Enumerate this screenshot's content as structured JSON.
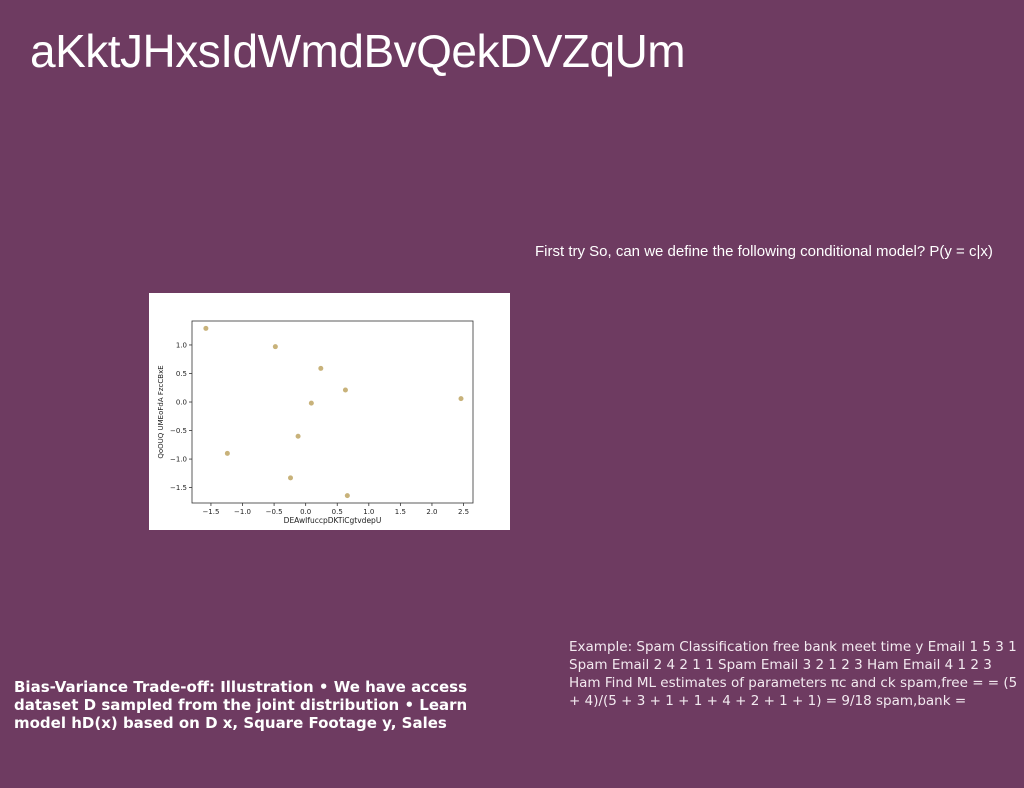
{
  "slide": {
    "title": "aKktJHxsIdWmdBvQekDVZqUm",
    "subtitle": "First try So, can we define the following conditional model? P(y = c|x)",
    "bias_text": "Bias-Variance Trade-off: Illustration • We have access dataset D sampled from the joint distribution • Learn model hD(x) based on D x, Square Footage y, Sales",
    "spam_text": "Example: Spam Classification free bank meet time y Email 1 5 3 1 Spam Email 2 4 2 1 1 Spam Email 3 2 1 2 3 Ham Email 4 1 2 3 Ham Find ML estimates of parameters πc and ck spam,free = = (5 + 4)/(5 + 3 + 1 + 1 + 4 + 2 + 1 + 1) = 9/18 spam,bank ="
  },
  "chart_data": {
    "type": "scatter",
    "xlabel": "DEAwIfuccpDKTiCgtvdepU",
    "ylabel": "QoOUQ UMEoFdA  FzcCBxE",
    "xlim": [
      -1.8,
      2.65
    ],
    "ylim": [
      -1.77,
      1.42
    ],
    "xticks": [
      "−1.5",
      "−1.0",
      "−0.5",
      "0.0",
      "0.5",
      "1.0",
      "1.5",
      "2.0",
      "2.5"
    ],
    "xtick_values": [
      -1.5,
      -1.0,
      -0.5,
      0.0,
      0.5,
      1.0,
      1.5,
      2.0,
      2.5
    ],
    "yticks": [
      "1.0",
      "0.5",
      "0.0",
      "−0.5",
      "−1.0",
      "−1.5"
    ],
    "ytick_values": [
      1.0,
      0.5,
      0.0,
      -0.5,
      -1.0,
      -1.5
    ],
    "points": [
      {
        "x": -1.58,
        "y": 1.29
      },
      {
        "x": -0.48,
        "y": 0.97
      },
      {
        "x": 0.24,
        "y": 0.59
      },
      {
        "x": 0.63,
        "y": 0.21
      },
      {
        "x": 0.09,
        "y": -0.02
      },
      {
        "x": 2.46,
        "y": 0.06
      },
      {
        "x": -0.12,
        "y": -0.6
      },
      {
        "x": -1.24,
        "y": -0.9
      },
      {
        "x": -0.24,
        "y": -1.33
      },
      {
        "x": 0.66,
        "y": -1.64
      }
    ],
    "point_color": "#c8b27a",
    "grid": false
  }
}
